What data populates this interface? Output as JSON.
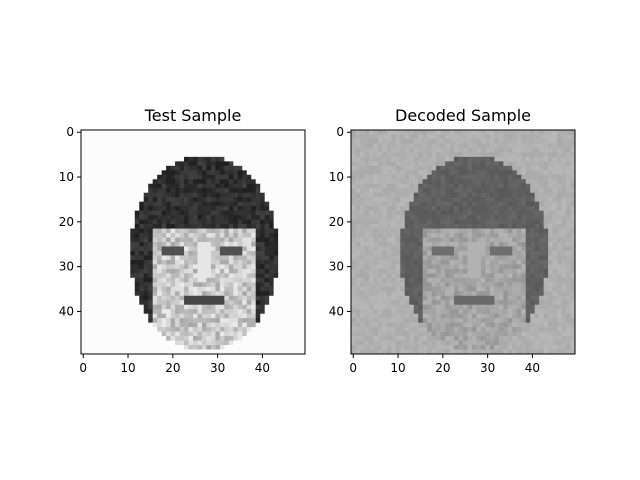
{
  "chart_data": [
    {
      "type": "heatmap",
      "title": "Test Sample",
      "colormap": "gray",
      "xlim": [
        0,
        49
      ],
      "ylim": [
        49,
        0
      ],
      "xticks": [
        0,
        10,
        20,
        30,
        40
      ],
      "yticks": [
        0,
        10,
        20,
        30,
        40
      ],
      "grid": false
    },
    {
      "type": "heatmap",
      "title": "Decoded Sample",
      "colormap": "gray",
      "xlim": [
        0,
        49
      ],
      "ylim": [
        49,
        0
      ],
      "xticks": [
        0,
        10,
        20,
        30,
        40
      ],
      "yticks": [
        0,
        10,
        20,
        30,
        40
      ],
      "grid": false
    }
  ]
}
